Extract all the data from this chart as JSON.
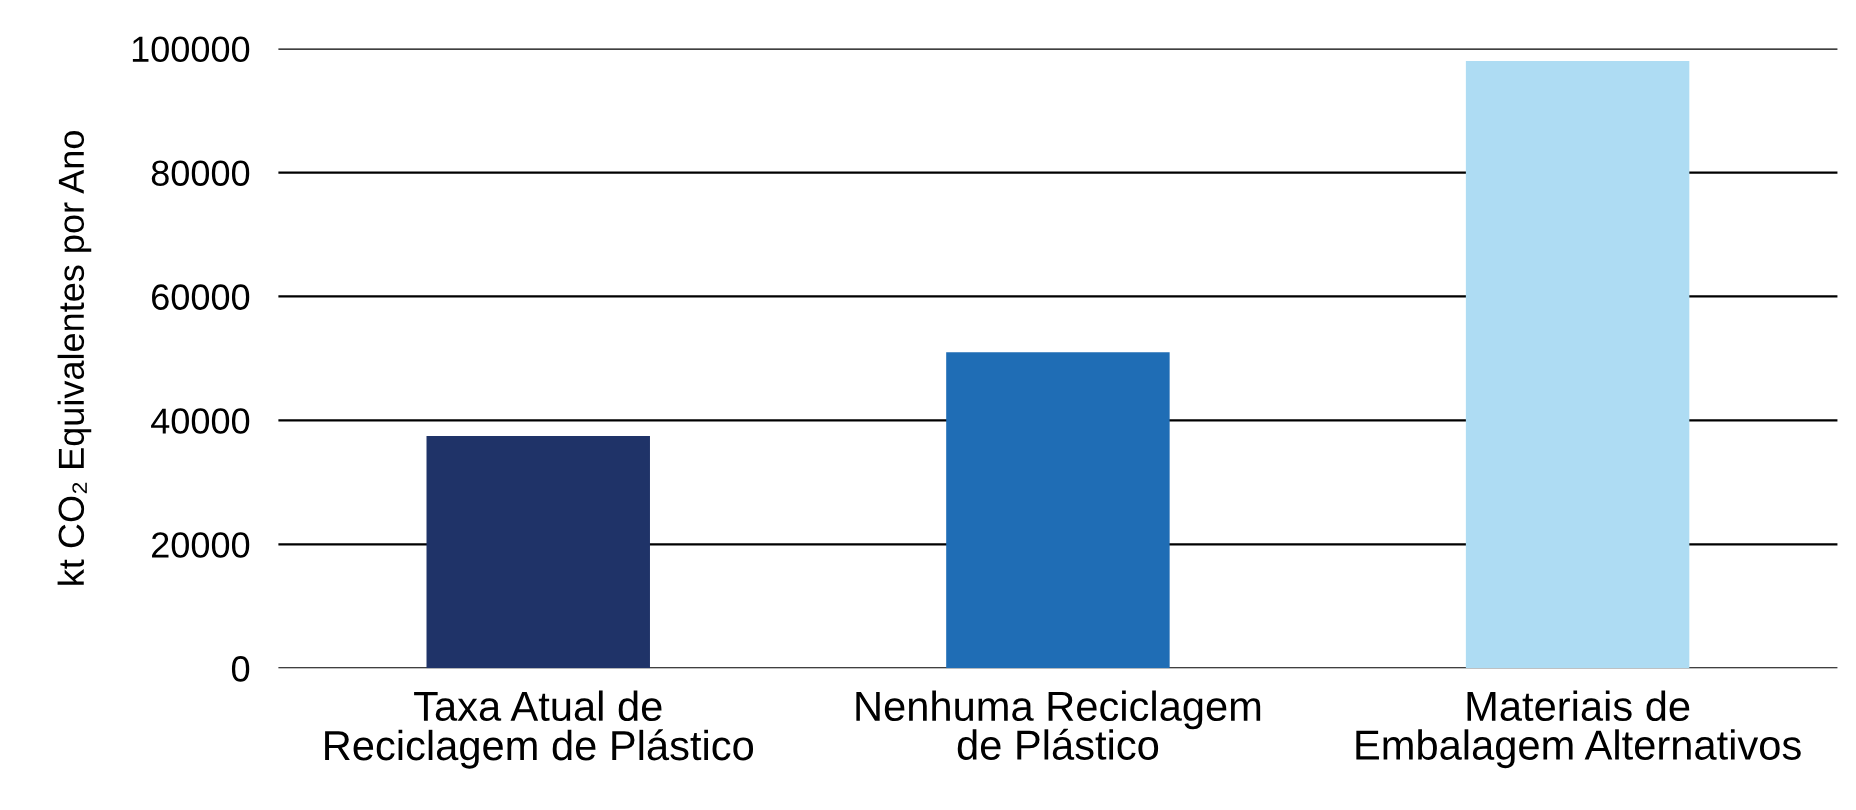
{
  "chart_data": {
    "type": "bar",
    "ylabel": "kt CO₂ Equivalentes por Ano",
    "categories": [
      "Taxa Atual de\nReciclagem de Plástico",
      "Nenhuma Reciclagem\nde Plástico",
      "Materiais de\nEmbalagem Alternativos"
    ],
    "values": [
      37500,
      51000,
      98000
    ],
    "colors": [
      "#1f3368",
      "#1f6db5",
      "#aedcf3"
    ],
    "ylim": [
      0,
      100000
    ],
    "yticks": [
      0,
      20000,
      40000,
      60000,
      80000,
      100000
    ],
    "grid": "y",
    "legend": false
  }
}
